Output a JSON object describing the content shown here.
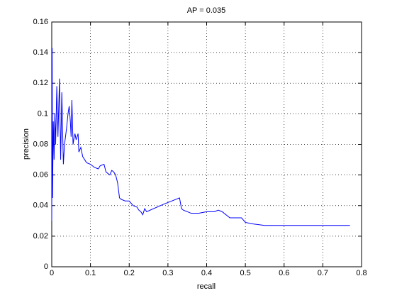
{
  "chart_data": {
    "type": "line",
    "title": "AP = 0.035",
    "x_label": "recall",
    "y_label": "precision",
    "xlim": [
      0,
      0.8
    ],
    "xticks": [
      0,
      0.1,
      0.2,
      0.3,
      0.4,
      0.5,
      0.6,
      0.7,
      0.8
    ],
    "ylim": [
      0,
      0.16
    ],
    "yticks": [
      0,
      0.02,
      0.04,
      0.06,
      0.08,
      0.1,
      0.12,
      0.14,
      0.16
    ],
    "grid": true,
    "series": [
      {
        "color": "#0000ff",
        "x": [
          0,
          0.001,
          0.002,
          0.004,
          0.006,
          0.008,
          0.01,
          0.013,
          0.016,
          0.02,
          0.023,
          0.026,
          0.03,
          0.033,
          0.038,
          0.042,
          0.045,
          0.048,
          0.05,
          0.052,
          0.055,
          0.058,
          0.06,
          0.063,
          0.068,
          0.07,
          0.075,
          0.08,
          0.085,
          0.09,
          0.1,
          0.11,
          0.12,
          0.125,
          0.135,
          0.14,
          0.15,
          0.155,
          0.16,
          0.165,
          0.17,
          0.175,
          0.18,
          0.19,
          0.2,
          0.21,
          0.22,
          0.225,
          0.23,
          0.235,
          0.24,
          0.245,
          0.29,
          0.33,
          0.335,
          0.34,
          0.36,
          0.38,
          0.4,
          0.42,
          0.43,
          0.44,
          0.46,
          0.48,
          0.49,
          0.5,
          0.52,
          0.55,
          0.6,
          0.65,
          0.7,
          0.74,
          0.77
        ],
        "values": [
          0.03,
          0.143,
          0.045,
          0.095,
          0.07,
          0.1,
          0.08,
          0.118,
          0.085,
          0.123,
          0.07,
          0.114,
          0.067,
          0.08,
          0.09,
          0.1,
          0.105,
          0.095,
          0.085,
          0.109,
          0.08,
          0.085,
          0.087,
          0.083,
          0.087,
          0.075,
          0.078,
          0.072,
          0.07,
          0.068,
          0.067,
          0.065,
          0.064,
          0.066,
          0.067,
          0.062,
          0.06,
          0.063,
          0.062,
          0.06,
          0.055,
          0.045,
          0.044,
          0.043,
          0.043,
          0.04,
          0.039,
          0.037,
          0.036,
          0.034,
          0.038,
          0.036,
          0.041,
          0.045,
          0.038,
          0.037,
          0.035,
          0.035,
          0.036,
          0.036,
          0.037,
          0.036,
          0.032,
          0.032,
          0.032,
          0.029,
          0.028,
          0.027,
          0.027,
          0.027,
          0.027,
          0.027,
          0.027
        ]
      }
    ]
  }
}
